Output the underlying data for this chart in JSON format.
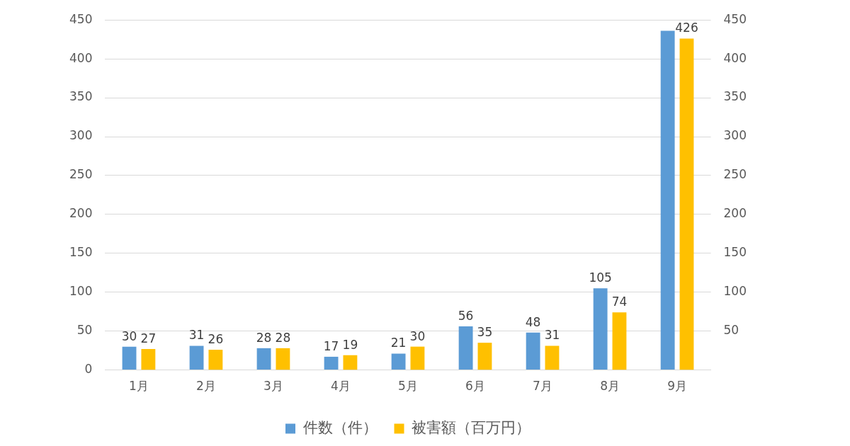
{
  "chart_data": {
    "type": "bar",
    "categories": [
      "1月",
      "2月",
      "3月",
      "4月",
      "5月",
      "6月",
      "7月",
      "8月",
      "9月"
    ],
    "series": [
      {
        "name": "件数（件）",
        "color": "#5b9bd5",
        "values": [
          30,
          31,
          28,
          17,
          21,
          56,
          48,
          105,
          436
        ],
        "value_labels": [
          "30",
          "31",
          "28",
          "17",
          "21",
          "56",
          "48",
          "105",
          null
        ]
      },
      {
        "name": "被害額（百万円）",
        "color": "#ffc000",
        "axis": "y2",
        "values": [
          27,
          26,
          28,
          19,
          30,
          35,
          31,
          74,
          426
        ],
        "value_labels": [
          "27",
          "26",
          "28",
          "19",
          "30",
          "35",
          "31",
          "74",
          "426"
        ]
      }
    ],
    "ylim": [
      0,
      450
    ],
    "yticks": [
      0,
      50,
      100,
      150,
      200,
      250,
      300,
      350,
      400,
      450
    ],
    "y2lim": [
      0,
      450
    ],
    "y2ticks": [
      50,
      100,
      150,
      200,
      250,
      300,
      350,
      400,
      450
    ],
    "grid": "y",
    "legend": "bottom"
  }
}
